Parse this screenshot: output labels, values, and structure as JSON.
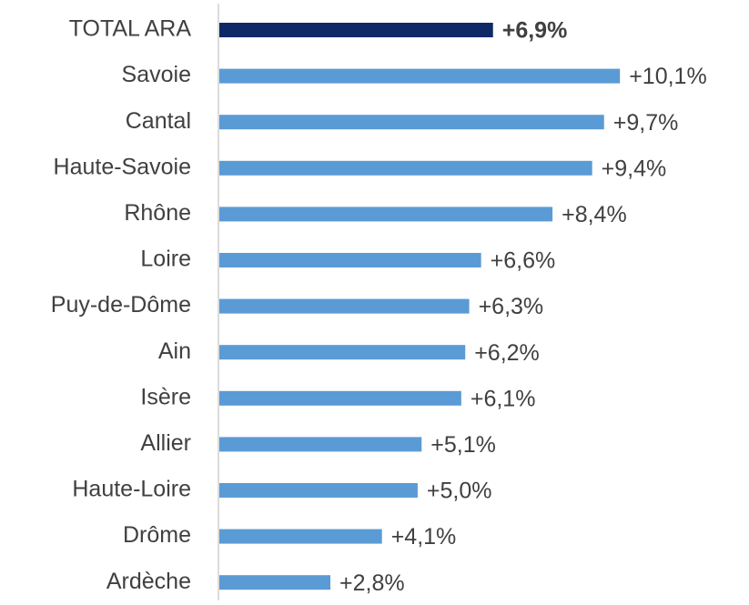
{
  "chart_data": {
    "type": "bar",
    "orientation": "horizontal",
    "categories": [
      "TOTAL ARA",
      "Savoie",
      "Cantal",
      "Haute-Savoie",
      "Rhône",
      "Loire",
      "Puy-de-Dôme",
      "Ain",
      "Isère",
      "Allier",
      "Haute-Loire",
      "Drôme",
      "Ardèche"
    ],
    "values": [
      6.9,
      10.1,
      9.7,
      9.4,
      8.4,
      6.6,
      6.3,
      6.2,
      6.1,
      5.1,
      5.0,
      4.1,
      2.8
    ],
    "value_labels": [
      "+6,9%",
      "+10,1%",
      "+9,7%",
      "+9,4%",
      "+8,4%",
      "+6,6%",
      "+6,3%",
      "+6,2%",
      "+6,1%",
      "+5,1%",
      "+5,0%",
      "+4,1%",
      "+2,8%"
    ],
    "colors": [
      "#0e2a66",
      "#5b9bd5",
      "#5b9bd5",
      "#5b9bd5",
      "#5b9bd5",
      "#5b9bd5",
      "#5b9bd5",
      "#5b9bd5",
      "#5b9bd5",
      "#5b9bd5",
      "#5b9bd5",
      "#5b9bd5",
      "#5b9bd5"
    ],
    "xlim": [
      0,
      12
    ]
  }
}
